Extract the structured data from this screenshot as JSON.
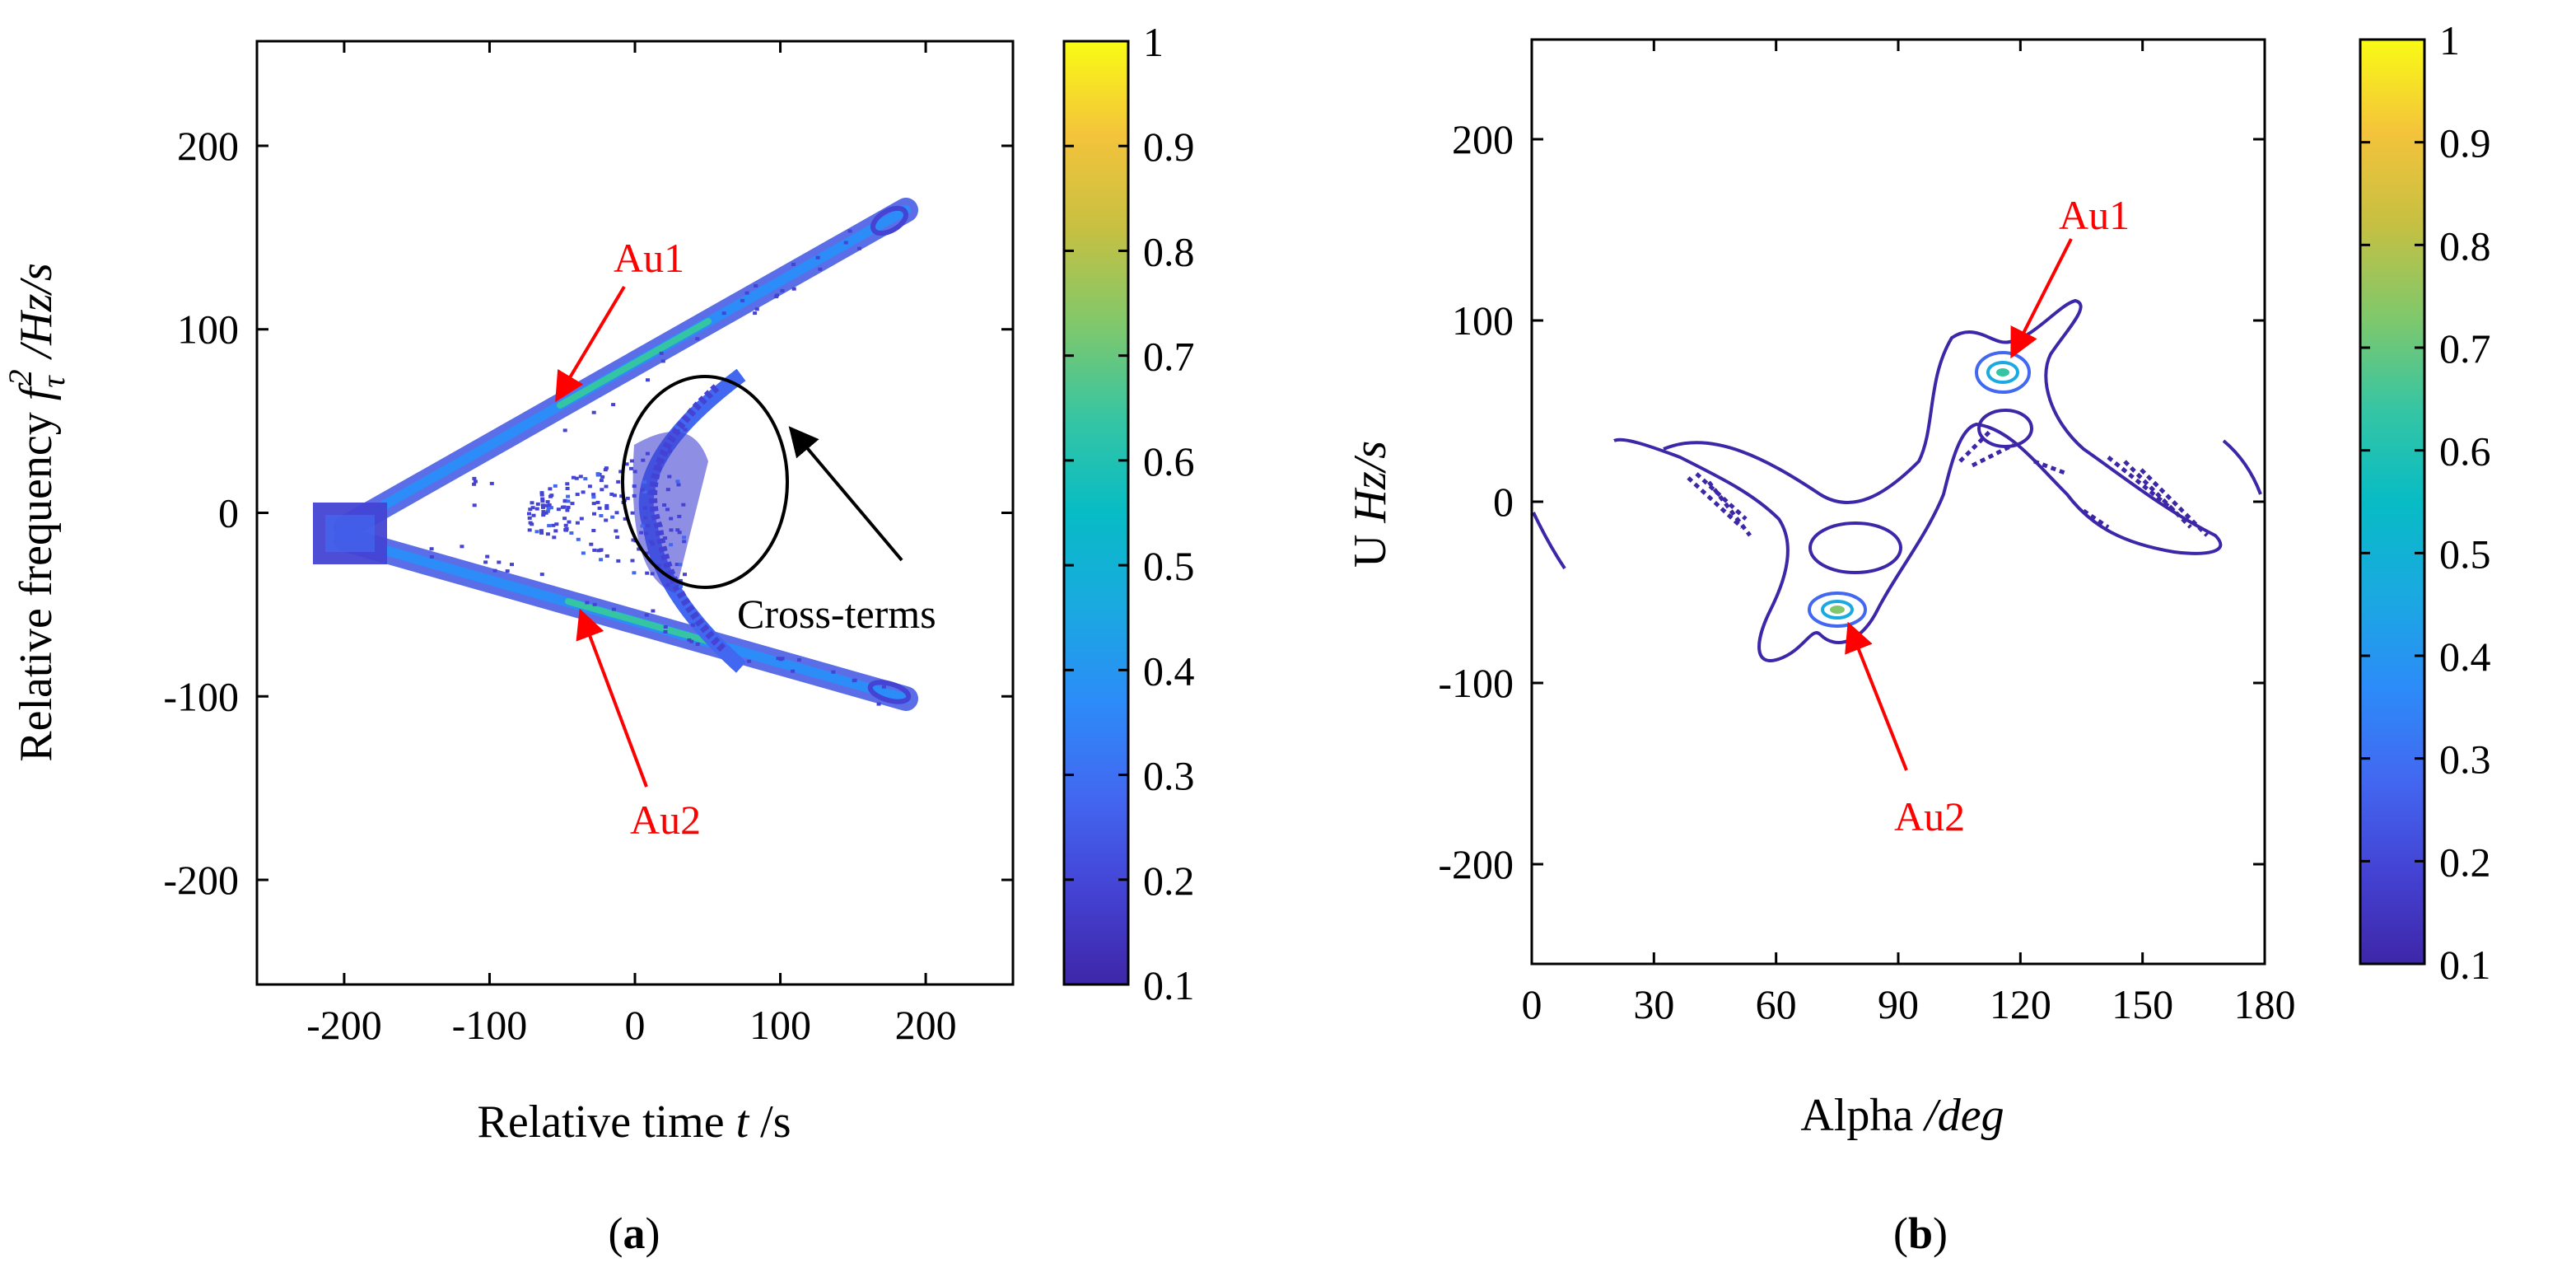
{
  "chart_data": [
    {
      "id": "a",
      "type": "heatmap",
      "panel_label": "a",
      "xlabel_prefix": "Relative time ",
      "xlabel_var": "t",
      "xlabel_unit": " /s",
      "ylabel_prefix": "Relative frequency ",
      "ylabel_var": "f",
      "ylabel_sub": "τ",
      "ylabel_sup": "2",
      "ylabel_unit": " /Hz/s",
      "xlim": [
        -260,
        260
      ],
      "ylim": [
        -257,
        257
      ],
      "xticks": [
        -200,
        -100,
        0,
        100,
        200
      ],
      "xtick_labels": [
        "-200",
        "-100",
        "0",
        "100",
        "200"
      ],
      "yticks": [
        -200,
        -100,
        0,
        100,
        200
      ],
      "ytick_labels": [
        "-200",
        "-100",
        "0",
        "100",
        "200"
      ],
      "colorbar": {
        "min": 0.1,
        "max": 1,
        "ticks": [
          "0.1",
          "0.2",
          "0.3",
          "0.4",
          "0.5",
          "0.6",
          "0.7",
          "0.8",
          "0.9",
          "1"
        ]
      },
      "features": [
        {
          "name": "Au1",
          "from": [
            -210,
            -15
          ],
          "to": [
            185,
            170
          ]
        },
        {
          "name": "Au2",
          "from": [
            -210,
            -15
          ],
          "to": [
            185,
            -105
          ]
        }
      ],
      "annotations": [
        {
          "text": "Au1",
          "color": "#ff0000",
          "target": [
            -50,
            60
          ]
        },
        {
          "text": "Au2",
          "color": "#ff0000",
          "target": [
            -35,
            -63
          ]
        },
        {
          "text": "Cross-terms",
          "color": "#000000",
          "target": [
            108,
            42
          ]
        }
      ],
      "cross_terms_ellipse": {
        "center": [
          51,
          16
        ],
        "radius": [
          55,
          57
        ]
      }
    },
    {
      "id": "b",
      "type": "contour",
      "panel_label": "b",
      "xlabel_prefix": "Alpha ",
      "xlabel_unit": "/deg",
      "ylabel_prefix": "U ",
      "ylabel_unit": "Hz/s",
      "xlim": [
        0,
        180
      ],
      "ylim": [
        -255,
        255
      ],
      "xticks": [
        0,
        30,
        60,
        90,
        120,
        150,
        180
      ],
      "xtick_labels": [
        "0",
        "30",
        "60",
        "90",
        "120",
        "150",
        "180"
      ],
      "yticks": [
        -200,
        -100,
        0,
        100,
        200
      ],
      "ytick_labels": [
        "-200",
        "-100",
        "0",
        "100",
        "200"
      ],
      "colorbar": {
        "min": 0.1,
        "max": 1,
        "ticks": [
          "0.1",
          "0.2",
          "0.3",
          "0.4",
          "0.5",
          "0.6",
          "0.7",
          "0.8",
          "0.9",
          "1"
        ]
      },
      "peaks": [
        {
          "name": "Au1",
          "alpha": 116,
          "u": 72
        },
        {
          "name": "Au2",
          "alpha": 77,
          "u": -58
        }
      ],
      "annotations": [
        {
          "text": "Au1",
          "color": "#ff0000",
          "target": [
            117,
            77
          ]
        },
        {
          "text": "Au2",
          "color": "#ff0000",
          "target": [
            78,
            -63
          ]
        }
      ]
    }
  ]
}
